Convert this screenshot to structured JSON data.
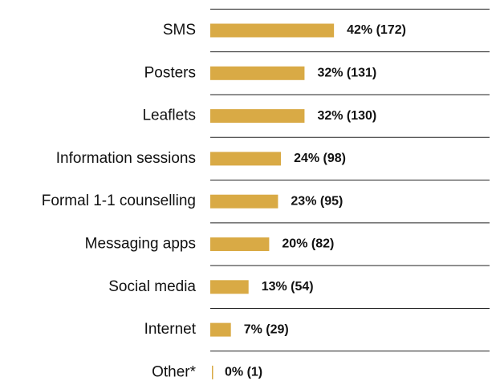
{
  "chart_data": {
    "type": "bar",
    "orientation": "horizontal",
    "categories": [
      "SMS",
      "Posters",
      "Leaflets",
      "Information sessions",
      "Formal 1-1 counselling",
      "Messaging apps",
      "Social media",
      "Internet",
      "Other*"
    ],
    "values": [
      42,
      32,
      32,
      24,
      23,
      20,
      13,
      7,
      0
    ],
    "value_labels": [
      "42% (172)",
      "32% (131)",
      "32% (130)",
      "24% (98)",
      "23% (95)",
      "20% (82)",
      "13% (54)",
      "7% (29)",
      "0% (1)"
    ],
    "color": "#d9aa45"
  }
}
